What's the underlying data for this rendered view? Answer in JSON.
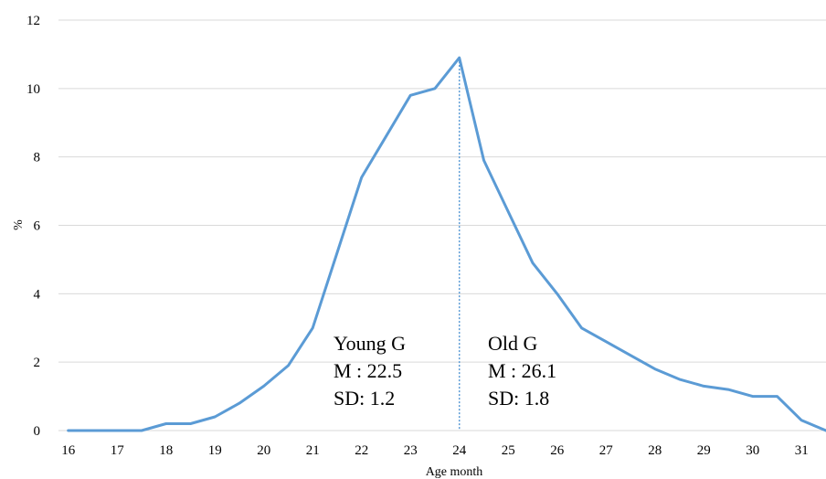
{
  "chart_data": {
    "type": "line",
    "xlabel": "Age month",
    "ylabel": "%",
    "xlim": [
      15.8,
      31.5
    ],
    "ylim": [
      0,
      12
    ],
    "grid": "horizontal",
    "x_ticks": [
      "16",
      "17",
      "18",
      "19",
      "20",
      "21",
      "22",
      "23",
      "24",
      "25",
      "26",
      "27",
      "28",
      "29",
      "30",
      "31"
    ],
    "y_ticks": [
      "0",
      "2",
      "4",
      "6",
      "8",
      "10",
      "12"
    ],
    "series": [
      {
        "color": "#5b9bd5",
        "x": [
          16,
          16.5,
          17,
          17.5,
          18,
          18.5,
          19,
          19.5,
          20,
          20.5,
          21,
          21.5,
          22,
          22.5,
          23,
          23.5,
          24,
          24.5,
          25,
          25.5,
          26,
          26.5,
          27,
          27.5,
          28,
          28.5,
          29,
          29.5,
          30,
          30.5,
          31,
          31.5
        ],
        "y": [
          0,
          0,
          0,
          0,
          0.2,
          0.2,
          0.4,
          0.8,
          1.3,
          1.9,
          3.0,
          5.2,
          7.4,
          8.6,
          9.8,
          10.0,
          10.9,
          7.9,
          6.4,
          4.9,
          4.0,
          3.0,
          2.6,
          2.2,
          1.8,
          1.5,
          1.3,
          1.2,
          1.0,
          1.0,
          0.3,
          0.0
        ]
      }
    ],
    "divider": {
      "x": 24,
      "color": "#5b9bd5"
    },
    "annotations": {
      "young": {
        "name": "Young G",
        "mean": "M : 22.5",
        "sd": "SD: 1.2"
      },
      "old": {
        "name": "Old G",
        "mean": "M : 26.1",
        "sd": "SD: 1.8"
      }
    }
  }
}
